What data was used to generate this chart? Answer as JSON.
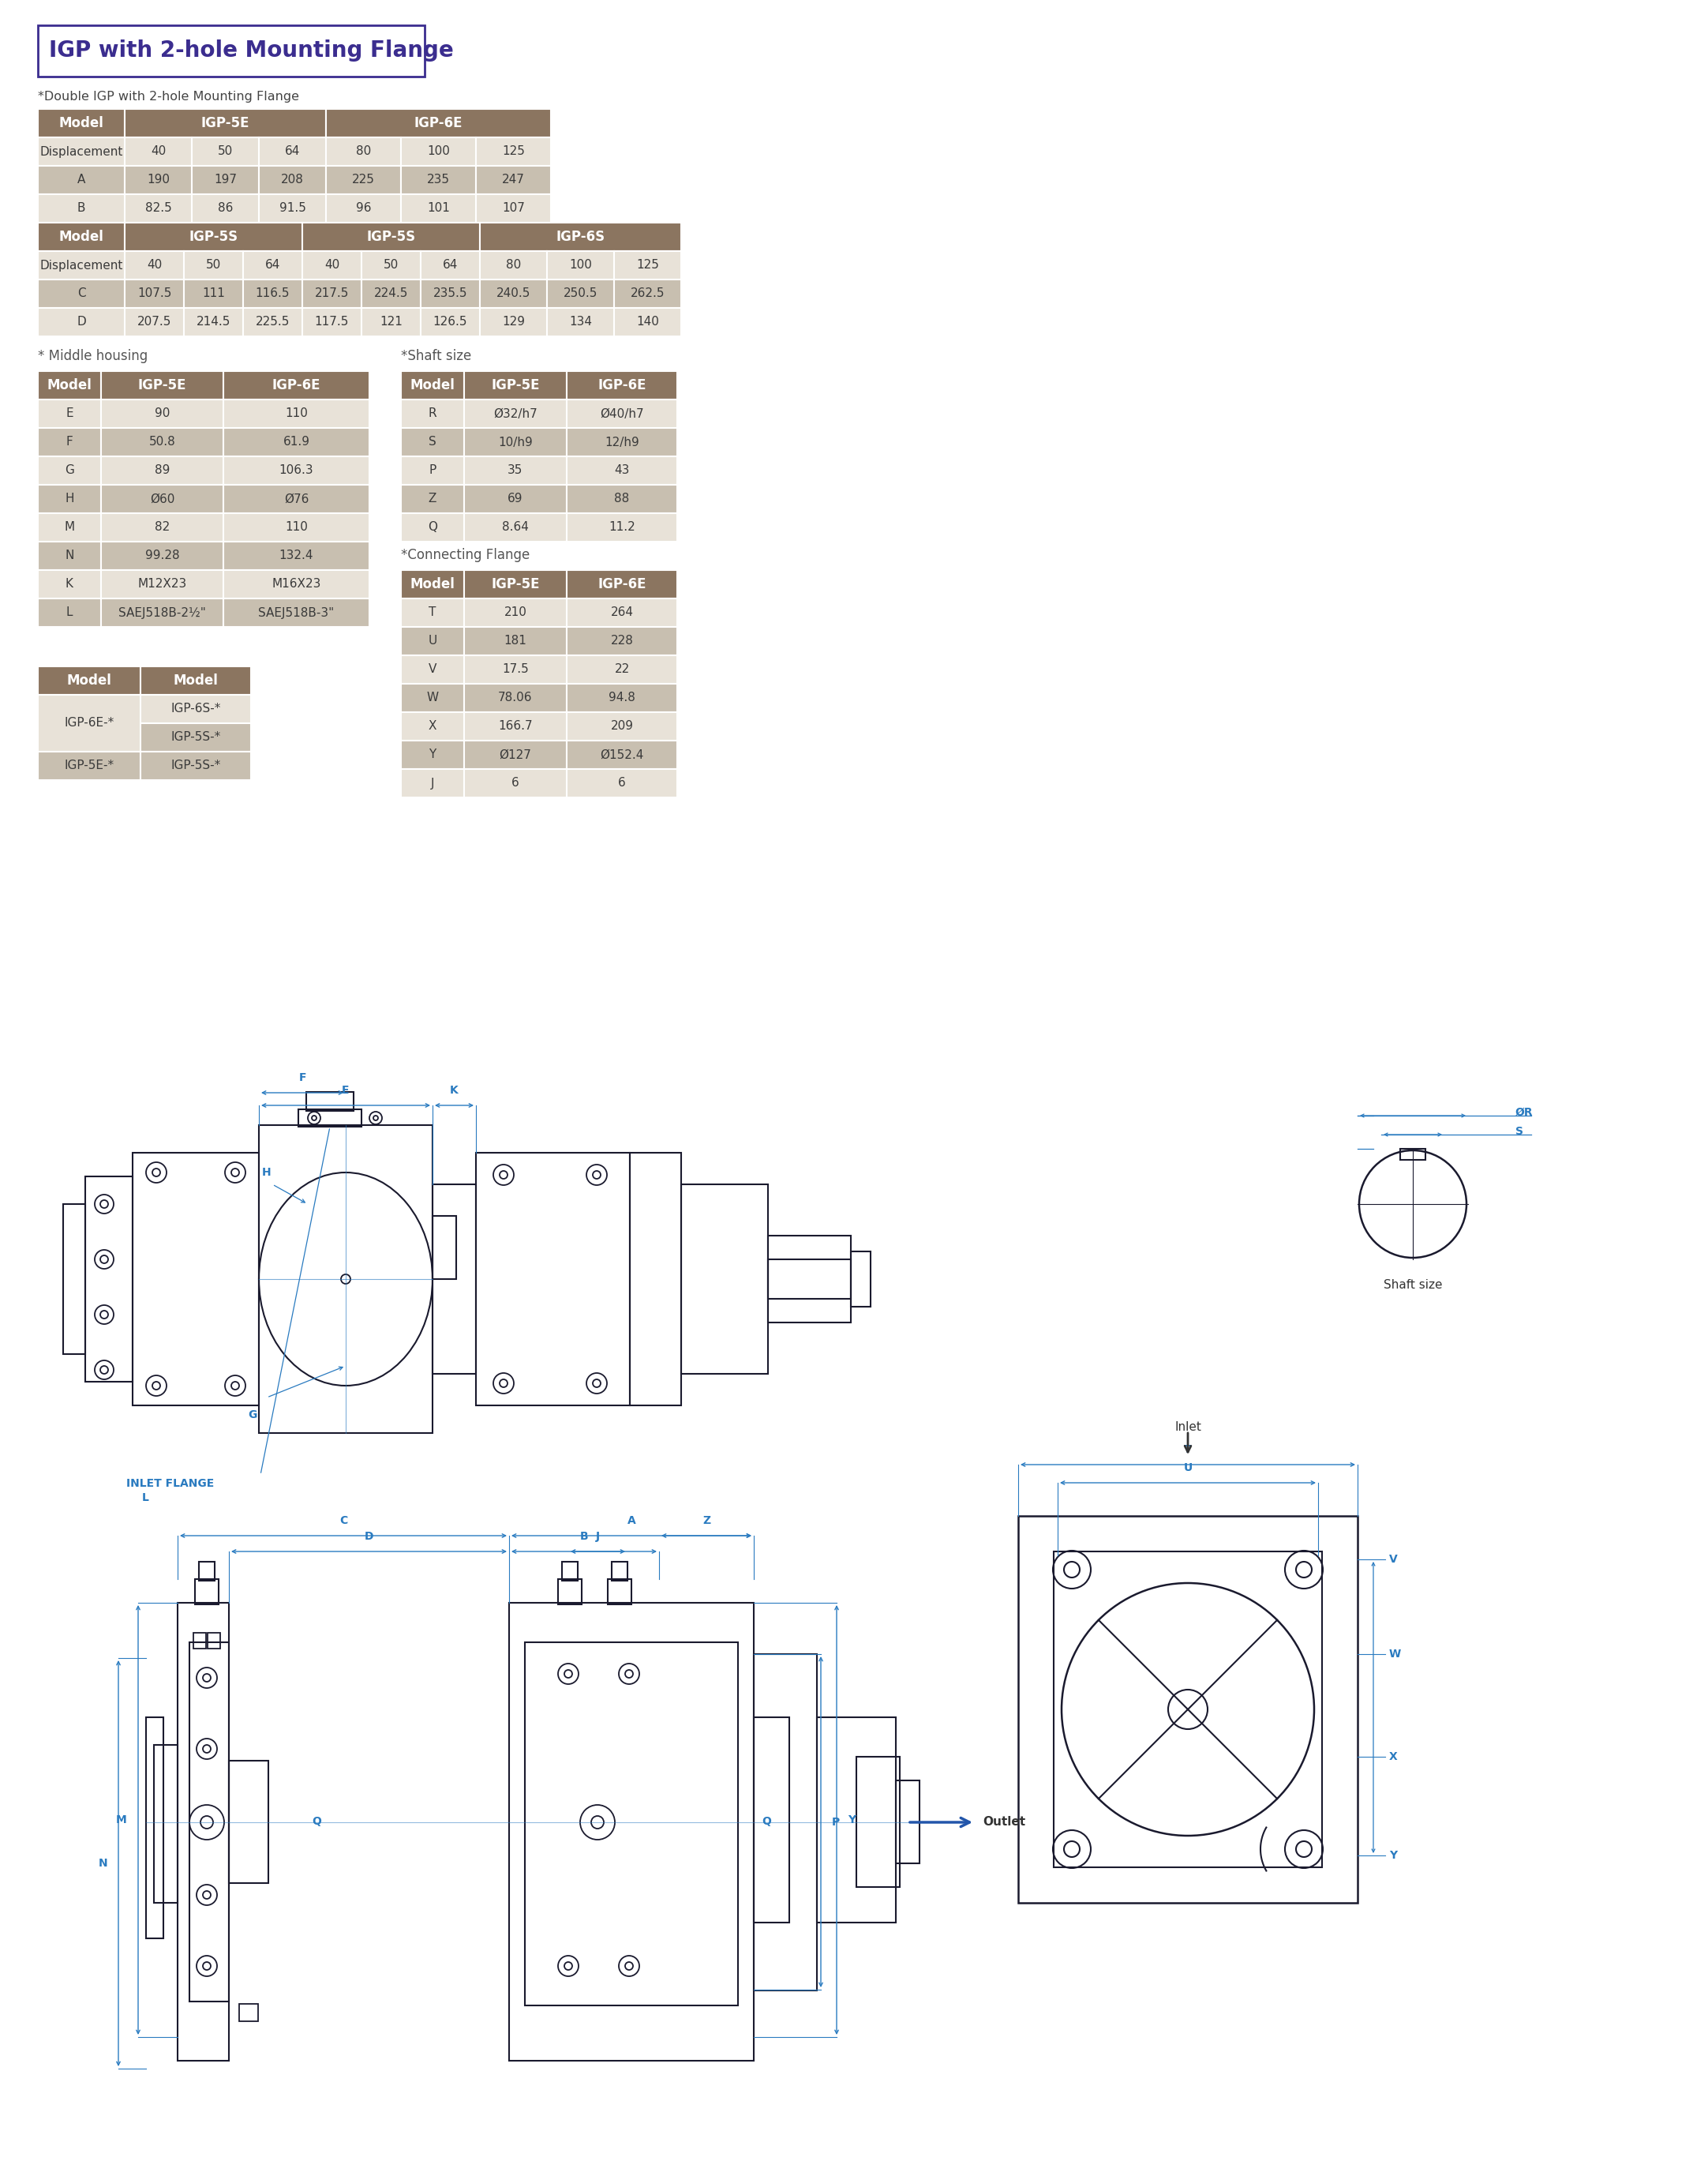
{
  "title": "IGP with 2-hole Mounting Flange",
  "title_color": "#3b2d8f",
  "title_border_color": "#3b2d8f",
  "subtitle1": "*Double IGP with 2-hole Mounting Flange",
  "header_bg": "#8b7560",
  "header_text": "#ffffff",
  "row_bg_dark": "#c8bfb0",
  "row_bg_light": "#e8e2d8",
  "cell_text": "#3a3a3a",
  "double_igp_rows": [
    [
      "Displacement",
      "40",
      "50",
      "64",
      "80",
      "100",
      "125"
    ],
    [
      "A",
      "190",
      "197",
      "208",
      "225",
      "235",
      "247"
    ],
    [
      "B",
      "82.5",
      "86",
      "91.5",
      "96",
      "101",
      "107"
    ]
  ],
  "double_igp_rows2": [
    [
      "Displacement",
      "40",
      "50",
      "64",
      "40",
      "50",
      "64",
      "80",
      "100",
      "125"
    ],
    [
      "C",
      "107.5",
      "111",
      "116.5",
      "217.5",
      "224.5",
      "235.5",
      "240.5",
      "250.5",
      "262.5"
    ],
    [
      "D",
      "207.5",
      "214.5",
      "225.5",
      "117.5",
      "121",
      "126.5",
      "129",
      "134",
      "140"
    ]
  ],
  "middle_housing_label": "* Middle housing",
  "shaft_size_label": "*Shaft size",
  "connecting_flange_label": "*Connecting Flange",
  "middle_housing_headers": [
    "Model",
    "IGP-5E",
    "IGP-6E"
  ],
  "middle_housing_rows": [
    [
      "E",
      "90",
      "110"
    ],
    [
      "F",
      "50.8",
      "61.9"
    ],
    [
      "G",
      "89",
      "106.3"
    ],
    [
      "H",
      "Ø60",
      "Ø76"
    ],
    [
      "M",
      "82",
      "110"
    ],
    [
      "N",
      "99.28",
      "132.4"
    ],
    [
      "K",
      "M12X23",
      "M16X23"
    ],
    [
      "L",
      "SAEJ518B-2½\"",
      "SAEJ518B-3\""
    ]
  ],
  "shaft_size_headers": [
    "Model",
    "IGP-5E",
    "IGP-6E"
  ],
  "shaft_size_rows": [
    [
      "R",
      "Ø32/h7",
      "Ø40/h7"
    ],
    [
      "S",
      "10/h9",
      "12/h9"
    ],
    [
      "P",
      "35",
      "43"
    ],
    [
      "Z",
      "69",
      "88"
    ],
    [
      "Q",
      "8.64",
      "11.2"
    ]
  ],
  "connecting_flange_headers": [
    "Model",
    "IGP-5E",
    "IGP-6E"
  ],
  "connecting_flange_rows": [
    [
      "T",
      "210",
      "264"
    ],
    [
      "U",
      "181",
      "228"
    ],
    [
      "V",
      "17.5",
      "22"
    ],
    [
      "W",
      "78.06",
      "94.8"
    ],
    [
      "X",
      "166.7",
      "209"
    ],
    [
      "Y",
      "Ø127",
      "Ø152.4"
    ],
    [
      "J",
      "6",
      "6"
    ]
  ],
  "compat_headers": [
    "Model",
    "Model"
  ],
  "diagram_color": "#2a7bc0",
  "diagram_line_color": "#1a1a2e",
  "dim_color": "#2a7bc0",
  "background_color": "#ffffff"
}
